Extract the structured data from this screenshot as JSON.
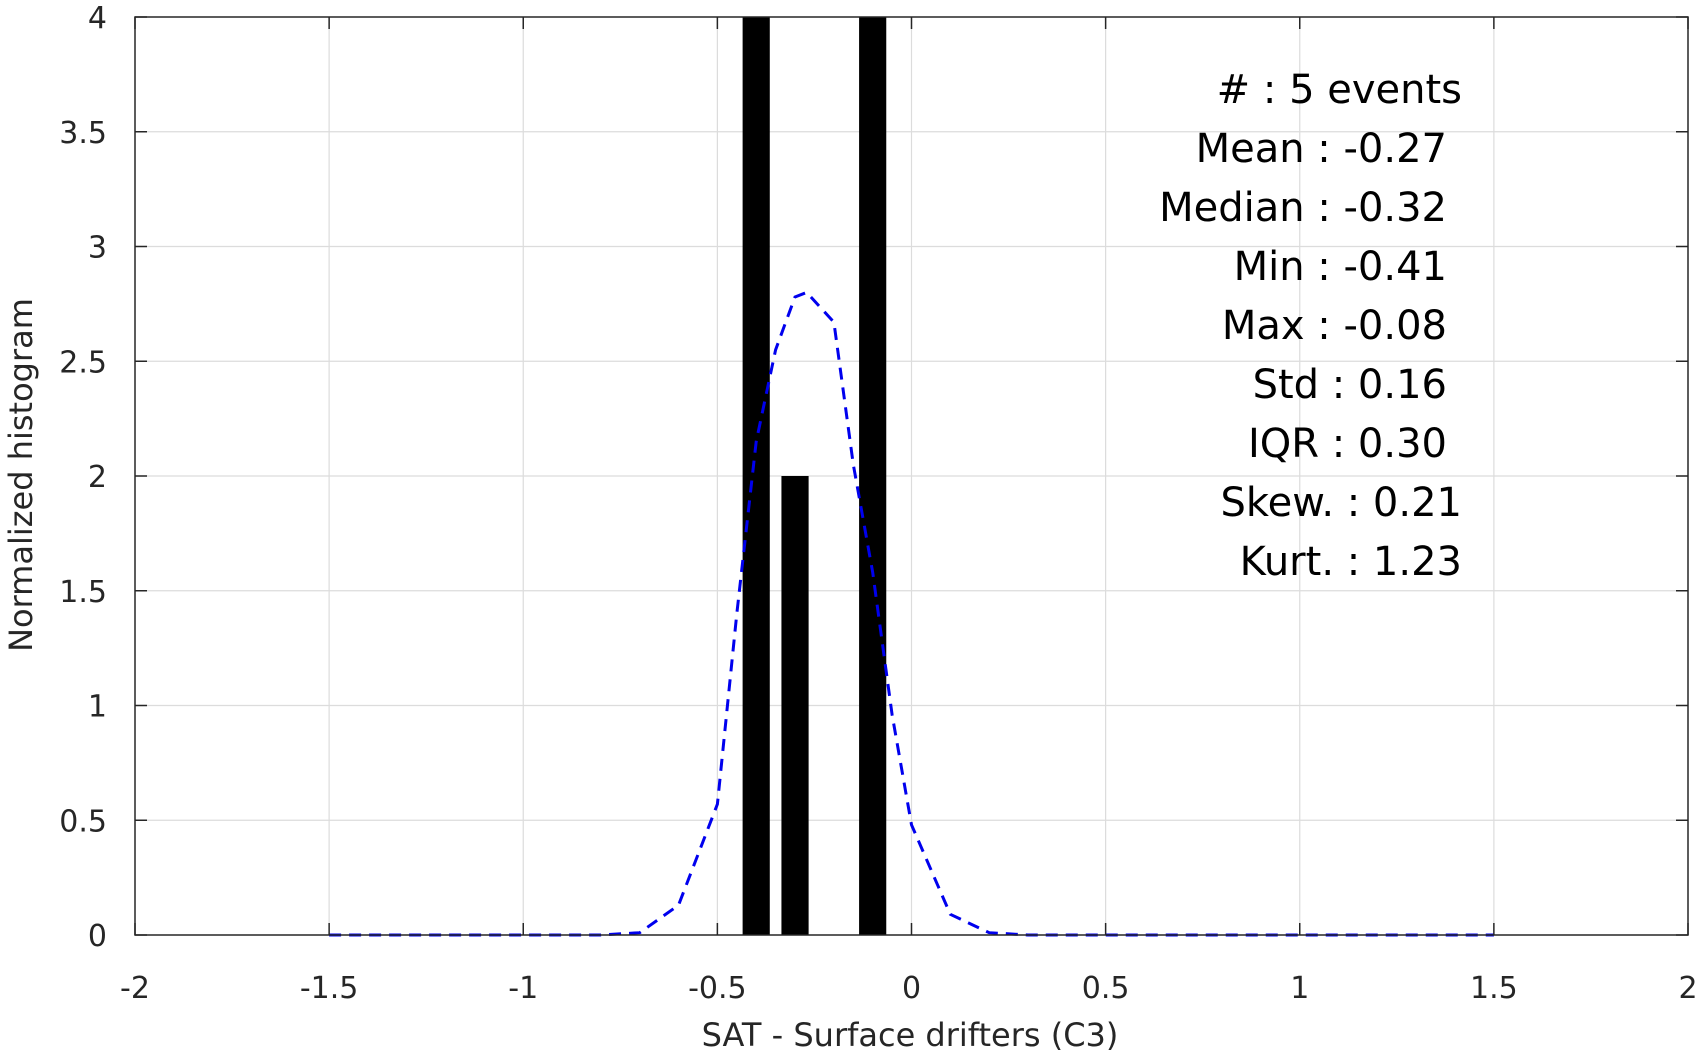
{
  "chart_data": {
    "type": "bar",
    "xlabel": "SAT - Surface drifters (C3)",
    "ylabel": "Normalized histogram",
    "xlim": [
      -2,
      2
    ],
    "ylim": [
      0,
      4
    ],
    "xticks": [
      -2,
      -1.5,
      -1,
      -0.5,
      0,
      0.5,
      1,
      1.5,
      2
    ],
    "xtick_labels": [
      "-2",
      "-1.5",
      "-1",
      "-0.5",
      "0",
      "0.5",
      "1",
      "1.5",
      "2"
    ],
    "yticks": [
      0,
      0.5,
      1,
      1.5,
      2,
      2.5,
      3,
      3.5,
      4
    ],
    "ytick_labels": [
      "0",
      "0.5",
      "1",
      "1.5",
      "2",
      "2.5",
      "3",
      "3.5",
      "4"
    ],
    "grid": true,
    "bar_width": 0.07,
    "bars": [
      {
        "x": -0.4,
        "value": 4
      },
      {
        "x": -0.3,
        "value": 2
      },
      {
        "x": -0.1,
        "value": 4
      }
    ],
    "bar_color": "#000000",
    "fit_curve": {
      "style": "dashed",
      "color": "#0000ee",
      "x": [
        -1.5,
        -1.4,
        -1.3,
        -1.2,
        -1.1,
        -1.0,
        -0.9,
        -0.8,
        -0.7,
        -0.6,
        -0.5,
        -0.45,
        -0.4,
        -0.35,
        -0.3,
        -0.27,
        -0.2,
        -0.15,
        -0.1,
        -0.05,
        0.0,
        0.1,
        0.2,
        0.3,
        0.5,
        0.7,
        0.9,
        1.1,
        1.3,
        1.5
      ],
      "y": [
        0,
        0,
        0,
        0,
        0,
        0,
        0,
        0,
        0.01,
        0.13,
        0.57,
        1.4,
        2.15,
        2.55,
        2.78,
        2.8,
        2.67,
        2.05,
        1.58,
        0.96,
        0.48,
        0.09,
        0.01,
        0,
        0,
        0,
        0,
        0,
        0,
        0
      ]
    },
    "annotations": [
      "#  : 5 events",
      "Mean : -0.27",
      "Median : -0.32",
      "Min : -0.41",
      "Max : -0.08",
      "Std : 0.16",
      "IQR : 0.30",
      "Skew. : 0.21",
      "Kurt. : 1.23"
    ]
  }
}
